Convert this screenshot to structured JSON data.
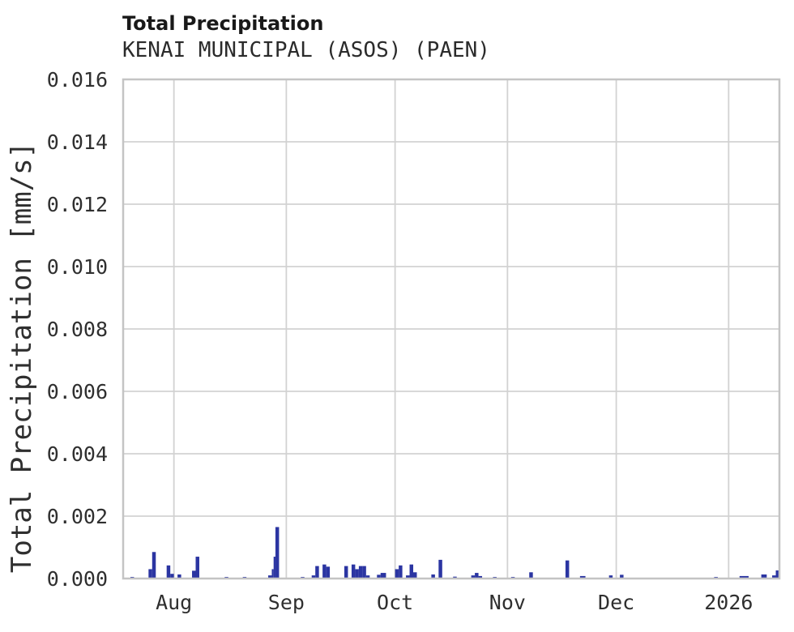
{
  "chart_data": {
    "type": "bar",
    "title": "Total Precipitation",
    "subtitle": "KENAI MUNICIPAL (ASOS) (PAEN)",
    "xlabel": "",
    "ylabel": "Total Precipitation [mm/s]",
    "unit": "mm/s",
    "grid": true,
    "legend_position": "none",
    "ylim": [
      0,
      0.016
    ],
    "xlim": [
      "2025-07-18",
      "2026-01-15"
    ],
    "colors": {
      "bar": "#2b35a2",
      "grid": "#d2d2d2",
      "border": "#c4c4c4",
      "tick_text": "#2f2f2f",
      "background": "#ffffff"
    },
    "yticks": [
      {
        "v": 0.0,
        "label": "0.000"
      },
      {
        "v": 0.002,
        "label": "0.002"
      },
      {
        "v": 0.004,
        "label": "0.004"
      },
      {
        "v": 0.006,
        "label": "0.006"
      },
      {
        "v": 0.008,
        "label": "0.008"
      },
      {
        "v": 0.01,
        "label": "0.010"
      },
      {
        "v": 0.012,
        "label": "0.012"
      },
      {
        "v": 0.014,
        "label": "0.014"
      },
      {
        "v": 0.016,
        "label": "0.016"
      }
    ],
    "xticks": [
      {
        "date": "2025-08-01",
        "label": "Aug"
      },
      {
        "date": "2025-09-01",
        "label": "Sep"
      },
      {
        "date": "2025-10-01",
        "label": "Oct"
      },
      {
        "date": "2025-11-01",
        "label": "Nov"
      },
      {
        "date": "2025-12-01",
        "label": "Dec"
      },
      {
        "date": "2026-01-01",
        "label": "2026"
      }
    ],
    "series": [
      {
        "name": "Total Precipitation",
        "points": [
          {
            "date": "2025-07-20",
            "value": 5e-05,
            "days": 1
          },
          {
            "date": "2025-07-25",
            "value": 0.0003,
            "days": 1
          },
          {
            "date": "2025-07-26",
            "value": 0.00085,
            "days": 1
          },
          {
            "date": "2025-07-30",
            "value": 0.00042,
            "days": 1
          },
          {
            "date": "2025-07-31",
            "value": 0.00015,
            "days": 1
          },
          {
            "date": "2025-08-02",
            "value": 0.00013,
            "days": 1
          },
          {
            "date": "2025-08-06",
            "value": 0.00025,
            "days": 1
          },
          {
            "date": "2025-08-07",
            "value": 0.0007,
            "days": 1
          },
          {
            "date": "2025-08-15",
            "value": 5e-05,
            "days": 1
          },
          {
            "date": "2025-08-20",
            "value": 5e-05,
            "days": 1
          },
          {
            "date": "2025-08-27",
            "value": 0.0001,
            "days": 1
          },
          {
            "date": "2025-08-28",
            "value": 0.0003,
            "days": 0.5
          },
          {
            "date": "2025-08-28T12:00:00",
            "value": 0.0007,
            "days": 0.5
          },
          {
            "date": "2025-08-29",
            "value": 0.00165,
            "days": 1
          },
          {
            "date": "2025-09-05",
            "value": 5e-05,
            "days": 1
          },
          {
            "date": "2025-09-08",
            "value": 0.0001,
            "days": 1
          },
          {
            "date": "2025-09-09",
            "value": 0.0004,
            "days": 1
          },
          {
            "date": "2025-09-11",
            "value": 0.00045,
            "days": 1
          },
          {
            "date": "2025-09-12",
            "value": 0.00038,
            "days": 1
          },
          {
            "date": "2025-09-17",
            "value": 0.0004,
            "days": 1
          },
          {
            "date": "2025-09-19",
            "value": 0.00045,
            "days": 1
          },
          {
            "date": "2025-09-20",
            "value": 0.0003,
            "days": 1
          },
          {
            "date": "2025-09-21",
            "value": 0.0004,
            "days": 1
          },
          {
            "date": "2025-09-22",
            "value": 0.0004,
            "days": 1
          },
          {
            "date": "2025-09-23",
            "value": 0.0001,
            "days": 1
          },
          {
            "date": "2025-09-26",
            "value": 0.00012,
            "days": 1
          },
          {
            "date": "2025-09-27",
            "value": 0.00018,
            "days": 1.5
          },
          {
            "date": "2025-10-01",
            "value": 0.0003,
            "days": 1
          },
          {
            "date": "2025-10-02",
            "value": 0.00042,
            "days": 1
          },
          {
            "date": "2025-10-04",
            "value": 0.0001,
            "days": 1
          },
          {
            "date": "2025-10-05",
            "value": 0.00045,
            "days": 1
          },
          {
            "date": "2025-10-06",
            "value": 0.0002,
            "days": 1
          },
          {
            "date": "2025-10-11",
            "value": 0.00013,
            "days": 1
          },
          {
            "date": "2025-10-13",
            "value": 0.0006,
            "days": 1
          },
          {
            "date": "2025-10-17",
            "value": 6e-05,
            "days": 1
          },
          {
            "date": "2025-10-22",
            "value": 0.0001,
            "days": 1
          },
          {
            "date": "2025-10-23",
            "value": 0.00018,
            "days": 1
          },
          {
            "date": "2025-10-24",
            "value": 8e-05,
            "days": 1
          },
          {
            "date": "2025-10-28",
            "value": 5e-05,
            "days": 1
          },
          {
            "date": "2025-11-02",
            "value": 5e-05,
            "days": 1
          },
          {
            "date": "2025-11-07",
            "value": 0.0002,
            "days": 1
          },
          {
            "date": "2025-11-17",
            "value": 0.00058,
            "days": 1
          },
          {
            "date": "2025-11-21",
            "value": 8e-05,
            "days": 1.5
          },
          {
            "date": "2025-11-29",
            "value": 0.0001,
            "days": 1
          },
          {
            "date": "2025-12-02",
            "value": 0.00012,
            "days": 1
          },
          {
            "date": "2025-12-28",
            "value": 5e-05,
            "days": 1
          },
          {
            "date": "2026-01-04",
            "value": 8e-05,
            "days": 2.5
          },
          {
            "date": "2026-01-10",
            "value": 0.00013,
            "days": 1.5
          },
          {
            "date": "2026-01-13",
            "value": 0.0001,
            "days": 1
          },
          {
            "date": "2026-01-14",
            "value": 0.00026,
            "days": 1
          }
        ]
      }
    ]
  }
}
